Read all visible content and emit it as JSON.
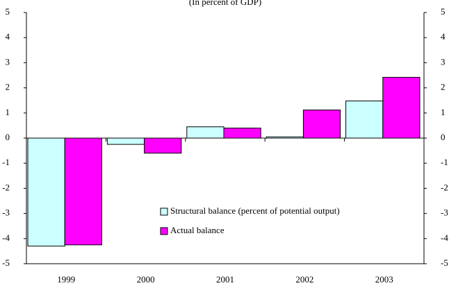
{
  "chart_data": {
    "type": "bar",
    "subtitle": "(In percent of GDP)",
    "categories": [
      "1999",
      "2000",
      "2001",
      "2002",
      "2003"
    ],
    "series": [
      {
        "name": "Structural balance (percent of potential output)",
        "color": "#ccffff",
        "values": [
          -4.3,
          -0.25,
          0.45,
          0.05,
          1.48
        ]
      },
      {
        "name": "Actual balance",
        "color": "#ff00ff",
        "values": [
          -4.25,
          -0.6,
          0.4,
          1.12,
          2.42
        ]
      }
    ],
    "ylim": [
      -5,
      5
    ],
    "yticks": [
      -5,
      -4,
      -3,
      -2,
      -1,
      0,
      1,
      2,
      3,
      4,
      5
    ],
    "y2lim": [
      -5,
      5
    ],
    "y2ticks": [
      -5,
      -4,
      -3,
      -2,
      -1,
      0,
      1,
      2,
      3,
      4,
      5
    ],
    "grid": false
  }
}
